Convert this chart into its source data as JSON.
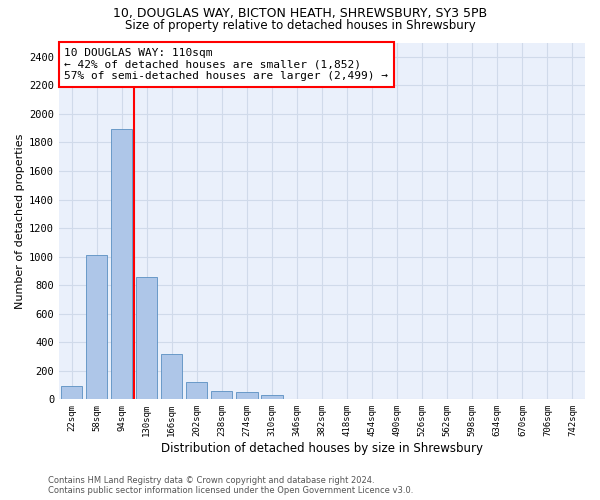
{
  "title1": "10, DOUGLAS WAY, BICTON HEATH, SHREWSBURY, SY3 5PB",
  "title2": "Size of property relative to detached houses in Shrewsbury",
  "xlabel": "Distribution of detached houses by size in Shrewsbury",
  "ylabel": "Number of detached properties",
  "categories": [
    "22sqm",
    "58sqm",
    "94sqm",
    "130sqm",
    "166sqm",
    "202sqm",
    "238sqm",
    "274sqm",
    "310sqm",
    "346sqm",
    "382sqm",
    "418sqm",
    "454sqm",
    "490sqm",
    "526sqm",
    "562sqm",
    "598sqm",
    "634sqm",
    "670sqm",
    "706sqm",
    "742sqm"
  ],
  "values": [
    95,
    1010,
    1895,
    860,
    315,
    120,
    60,
    50,
    30,
    0,
    0,
    0,
    0,
    0,
    0,
    0,
    0,
    0,
    0,
    0,
    0
  ],
  "bar_color": "#aec6e8",
  "bar_edge_color": "#5a8fc2",
  "vline_x": 2.5,
  "vline_color": "red",
  "annotation_text": "10 DOUGLAS WAY: 110sqm\n← 42% of detached houses are smaller (1,852)\n57% of semi-detached houses are larger (2,499) →",
  "annotation_box_color": "white",
  "annotation_box_edge": "red",
  "ylim": [
    0,
    2500
  ],
  "yticks": [
    0,
    200,
    400,
    600,
    800,
    1000,
    1200,
    1400,
    1600,
    1800,
    2000,
    2200,
    2400
  ],
  "bg_color": "#eaf0fb",
  "grid_color": "#d0daea",
  "footnote": "Contains HM Land Registry data © Crown copyright and database right 2024.\nContains public sector information licensed under the Open Government Licence v3.0.",
  "title_fontsize": 9,
  "subtitle_fontsize": 8.5,
  "ylabel_fontsize": 8,
  "xlabel_fontsize": 8.5,
  "annot_fontsize": 8
}
